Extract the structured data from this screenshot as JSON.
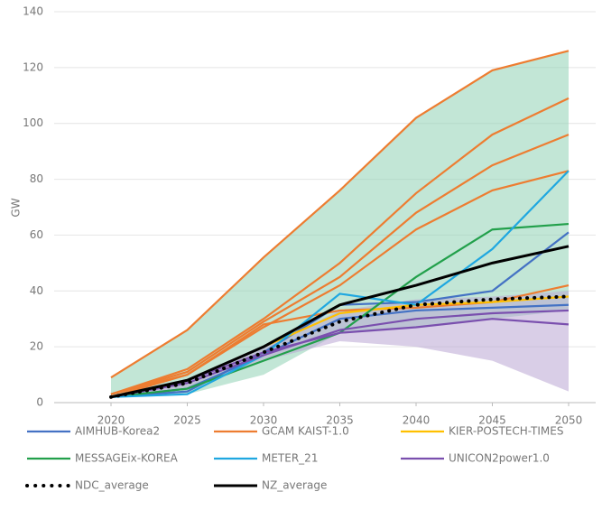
{
  "chart_data": {
    "type": "line",
    "y_label": "GW",
    "x": [
      2020,
      2025,
      2030,
      2035,
      2040,
      2045,
      2050
    ],
    "xlim": [
      2020,
      2050
    ],
    "xticks": [
      2020,
      2025,
      2030,
      2035,
      2040,
      2045,
      2050
    ],
    "ylim": [
      0,
      140
    ],
    "yticks": [
      0,
      20,
      40,
      60,
      80,
      100,
      120,
      140
    ],
    "grid": true,
    "bands": [
      {
        "color": "#8fd1b4",
        "upper": [
          9,
          26,
          52,
          76,
          102,
          119,
          126
        ],
        "lower": [
          2,
          3,
          10,
          25,
          27,
          30,
          33
        ]
      },
      {
        "color": "#b9a6d3",
        "upper": [
          2,
          8,
          20,
          33,
          37,
          38,
          40
        ],
        "lower": [
          2,
          5,
          15,
          22,
          20,
          15,
          4
        ]
      }
    ],
    "series": [
      {
        "name": "AIMHUB-Korea2",
        "color": "#4472c4",
        "lines": [
          [
            2,
            4,
            18,
            35,
            36,
            40,
            61
          ],
          [
            2,
            5,
            17,
            30,
            33,
            34,
            35
          ]
        ]
      },
      {
        "name": "GCAM KAIST-1.0",
        "color": "#ed7d31",
        "lines": [
          [
            9,
            26,
            52,
            76,
            102,
            119,
            126
          ],
          [
            3,
            12,
            30,
            50,
            75,
            96,
            109
          ],
          [
            3,
            11,
            29,
            45,
            68,
            85,
            96
          ],
          [
            3,
            10,
            27,
            42,
            62,
            76,
            83
          ],
          [
            2,
            10,
            28,
            33,
            34,
            36,
            42
          ]
        ]
      },
      {
        "name": "KIER-POSTECH-TIMES",
        "color": "#ffc000",
        "lines": [
          [
            2,
            8,
            20,
            32,
            35,
            36,
            38
          ]
        ]
      },
      {
        "name": "MESSAGEix-KOREA",
        "color": "#22a04b",
        "lines": [
          [
            2,
            5,
            15,
            25,
            45,
            62,
            64
          ]
        ]
      },
      {
        "name": "METER_21",
        "color": "#1fa7e0",
        "lines": [
          [
            2,
            3,
            17,
            39,
            35,
            55,
            83
          ]
        ]
      },
      {
        "name": "UNICON2power1.0",
        "color": "#7a4fae",
        "lines": [
          [
            2,
            8,
            18,
            25,
            27,
            30,
            28
          ],
          [
            2,
            7,
            17,
            26,
            30,
            32,
            33
          ]
        ]
      },
      {
        "name": "NDC_average",
        "color": "#000000",
        "dotted": true,
        "lines": [
          [
            2,
            7,
            18,
            29,
            35,
            37,
            38
          ]
        ]
      },
      {
        "name": "NZ_average",
        "color": "#000000",
        "lines": [
          [
            2,
            8,
            20,
            35,
            42,
            50,
            56
          ]
        ]
      }
    ]
  }
}
